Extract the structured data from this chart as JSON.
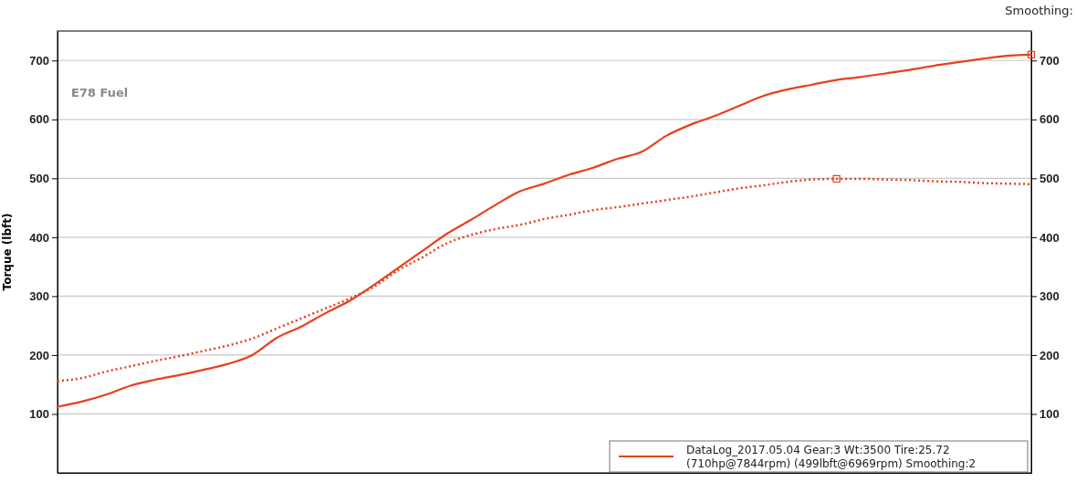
{
  "chart_data": {
    "type": "line",
    "ylabel": "Torque (lbft)",
    "annotations": [
      "E78 Fuel",
      "Smoothing:"
    ],
    "categories": [
      null,
      null,
      null,
      null,
      null,
      null,
      null,
      null,
      null,
      null,
      null,
      null,
      null,
      null,
      null,
      null,
      null,
      null,
      null,
      null,
      null,
      null,
      null,
      null,
      null,
      null,
      null,
      null,
      null,
      null,
      null,
      null,
      null,
      null,
      null,
      null,
      null,
      null,
      null,
      null,
      null
    ],
    "series": [
      {
        "name": "DataLog_2017.05.04 Gear:3 Wt:3500 Tire:25.72 (710hp@7844rpm) (499lbft@6969rpm) Smoothing:2",
        "color": "#e8401c",
        "line_style": "solid",
        "values": [
          112,
          121,
          133,
          148,
          158,
          166,
          175,
          185,
          200,
          229,
          248,
          271,
          292,
          319,
          348,
          377,
          406,
          430,
          455,
          478,
          491,
          506,
          518,
          533,
          545,
          572,
          591,
          606,
          623,
          640,
          651,
          659,
          667,
          672,
          678,
          684,
          691,
          697,
          703,
          708,
          710
        ]
      },
      {
        "color": "#e8401c",
        "line_style": "dotted",
        "values": [
          156,
          161,
          172,
          181,
          190,
          198,
          207,
          216,
          228,
          245,
          262,
          279,
          296,
          316,
          344,
          366,
          390,
          404,
          414,
          421,
          431,
          438,
          446,
          451,
          457,
          463,
          469,
          476,
          483,
          488,
          494,
          498,
          499,
          499,
          498,
          497,
          495,
          494,
          492,
          491,
          490
        ]
      },
      {
        "type": "scatter",
        "color": "#e8401c",
        "marker": "square",
        "values": [
          null,
          null,
          null,
          null,
          null,
          null,
          null,
          null,
          null,
          null,
          null,
          null,
          null,
          null,
          null,
          null,
          null,
          null,
          null,
          null,
          null,
          null,
          null,
          null,
          null,
          null,
          null,
          null,
          null,
          null,
          null,
          null,
          null,
          null,
          null,
          null,
          null,
          null,
          null,
          null,
          710
        ]
      },
      {
        "type": "scatter",
        "color": "#e8401c",
        "marker": "square",
        "values": [
          null,
          null,
          null,
          null,
          null,
          null,
          null,
          null,
          null,
          null,
          null,
          null,
          null,
          null,
          null,
          null,
          null,
          null,
          null,
          null,
          null,
          null,
          null,
          null,
          null,
          null,
          null,
          null,
          null,
          null,
          null,
          null,
          499,
          null,
          null,
          null,
          null,
          null,
          null,
          null,
          null
        ]
      }
    ],
    "ylim": [
      0,
      750
    ],
    "yticks": [
      100,
      200,
      300,
      400,
      500,
      600,
      700
    ],
    "y2lim": [
      0,
      750
    ],
    "y2ticks": [
      100,
      200,
      300,
      400,
      500,
      600,
      700
    ],
    "grid": "y",
    "legend": "bottom right",
    "tick_labels": "y"
  }
}
